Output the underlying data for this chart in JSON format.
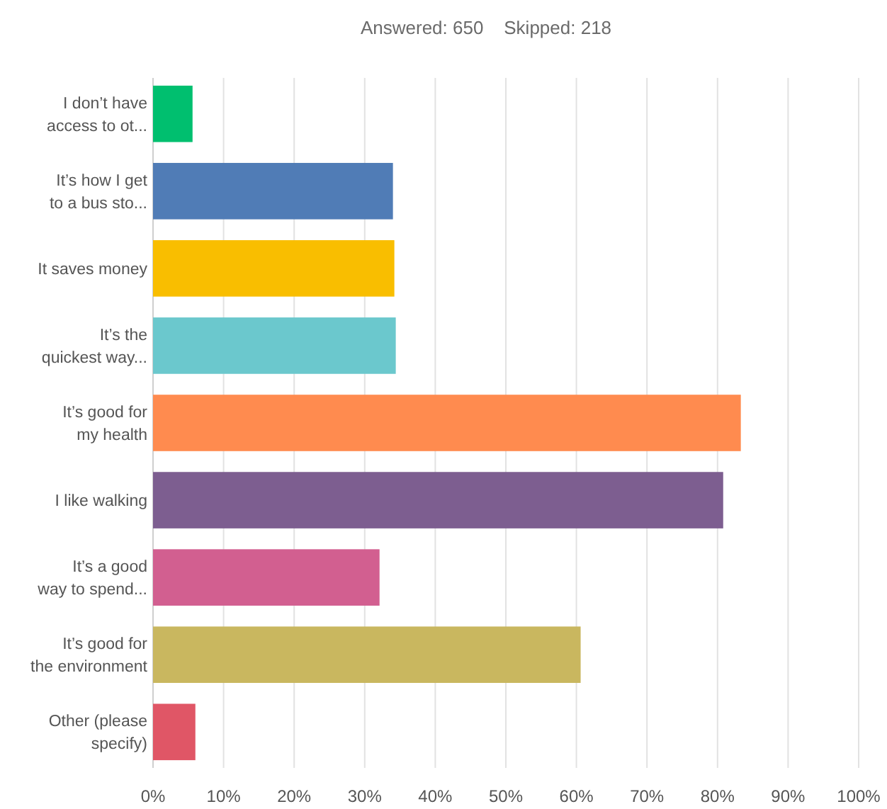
{
  "chart_data": {
    "type": "bar",
    "orientation": "horizontal",
    "title": "Answered: 650    Skipped: 218",
    "categories": [
      "I don’t have\naccess to ot...",
      "It’s how I get\nto a bus sto...",
      "It saves money",
      "It’s the\nquickest way...",
      "It’s good for\nmy health",
      "I like walking",
      "It’s a good\nway to spend...",
      "It’s good for\nthe environment",
      "Other (please\nspecify)"
    ],
    "values": [
      5.6,
      34.0,
      34.2,
      34.4,
      83.3,
      80.8,
      32.1,
      60.6,
      6.0
    ],
    "colors": [
      "#00bf6f",
      "#507cb6",
      "#f9be00",
      "#6bc8cd",
      "#ff8b4f",
      "#7d5e90",
      "#d25f90",
      "#c9b75f",
      "#e05666"
    ],
    "xlim": [
      0,
      100
    ],
    "xticks": [
      {
        "value": 0,
        "label": "0%"
      },
      {
        "value": 10,
        "label": "10%"
      },
      {
        "value": 20,
        "label": "20%"
      },
      {
        "value": 30,
        "label": "30%"
      },
      {
        "value": 40,
        "label": "40%"
      },
      {
        "value": 50,
        "label": "50%"
      },
      {
        "value": 60,
        "label": "60%"
      },
      {
        "value": 70,
        "label": "70%"
      },
      {
        "value": 80,
        "label": "80%"
      },
      {
        "value": 90,
        "label": "90%"
      },
      {
        "value": 100,
        "label": "100%"
      }
    ],
    "grid": "x"
  }
}
